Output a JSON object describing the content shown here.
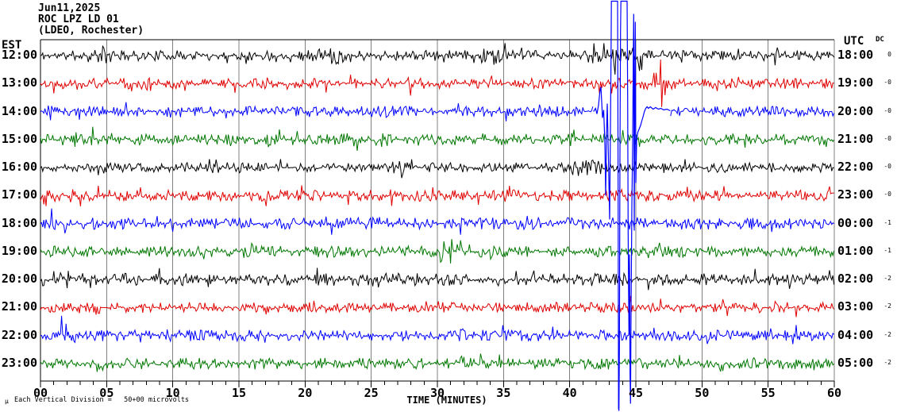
{
  "header": {
    "date": "Jun11,2025",
    "station": "ROC LPZ LD 01",
    "location": "(LDEO, Rochester)"
  },
  "labels": {
    "left_timezone": "EST",
    "right_timezone": "UTC",
    "dc_column": "DC"
  },
  "footer": {
    "mu": "μ",
    "scale_note": "Each Vertical Division =   50+00 microvolts",
    "xaxis_title": "TIME (MINUTES)"
  },
  "chart_data": {
    "type": "line",
    "kind": "helicorder seismogram, one 60-minute trace per hour",
    "title": "ROC LPZ LD 01 (LDEO, Rochester) Jun11,2025",
    "xlabel": "TIME (MINUTES)",
    "x_range_minutes": [
      0,
      60
    ],
    "x_major_tick_minutes": 5,
    "x_minor_tick_minutes": 1,
    "x_tick_labels": [
      "00",
      "05",
      "10",
      "15",
      "20",
      "25",
      "30",
      "35",
      "40",
      "45",
      "50",
      "55",
      "60"
    ],
    "grid": "vertical gray lines every 5 minutes",
    "vertical_division": "50+00 microvolts",
    "colors": {
      "grid": "#808080",
      "border": "#000000",
      "trace_cycle": [
        "#000000",
        "#e00000",
        "#0000ff",
        "#007700"
      ]
    },
    "rows": [
      {
        "est": "12:00",
        "utc": "18:00",
        "dc": "0",
        "color": "#000000",
        "amp": 3.0,
        "seed": 11,
        "bursts": [
          [
            3,
            6.5,
            6
          ],
          [
            19,
            25,
            5
          ],
          [
            31.5,
            36,
            6
          ],
          [
            40,
            47,
            6
          ]
        ]
      },
      {
        "est": "13:00",
        "utc": "19:00",
        "dc": "-0",
        "color": "#e00000",
        "amp": 3.0,
        "seed": 22,
        "bursts": [
          [
            5,
            9,
            5
          ],
          [
            26,
            30,
            4
          ],
          [
            45.4,
            48.3,
            9
          ],
          [
            46.72,
            47.12,
            17
          ]
        ]
      },
      {
        "est": "14:00",
        "utc": "20:00",
        "dc": "-0",
        "color": "#0000ff",
        "amp": 3.0,
        "seed": 33,
        "bursts": [
          [
            0,
            1.5,
            7
          ],
          [
            8,
            11,
            5
          ],
          [
            24,
            28,
            4
          ]
        ]
      },
      {
        "est": "15:00",
        "utc": "21:00",
        "dc": "-0",
        "color": "#007700",
        "amp": 3.2,
        "seed": 44,
        "bursts": [
          [
            0,
            7,
            5
          ],
          [
            21,
            26,
            4
          ],
          [
            38,
            42,
            4
          ]
        ]
      },
      {
        "est": "16:00",
        "utc": "22:00",
        "dc": "-0",
        "color": "#000000",
        "amp": 2.8,
        "seed": 55,
        "bursts": [
          [
            12,
            16,
            4
          ],
          [
            25,
            29,
            4
          ],
          [
            40,
            44,
            5
          ]
        ]
      },
      {
        "est": "17:00",
        "utc": "23:00",
        "dc": "-0",
        "color": "#e00000",
        "amp": 3.2,
        "seed": 66,
        "bursts": [
          [
            0,
            4,
            5
          ],
          [
            12,
            16,
            4
          ],
          [
            33,
            37,
            4
          ]
        ]
      },
      {
        "est": "18:00",
        "utc": "00:00",
        "dc": "-1",
        "color": "#0000ff",
        "amp": 3.4,
        "seed": 77,
        "bursts": [
          [
            0,
            3,
            6
          ],
          [
            8,
            11,
            4
          ],
          [
            24,
            27,
            4
          ]
        ]
      },
      {
        "est": "19:00",
        "utc": "01:00",
        "dc": "-1",
        "color": "#007700",
        "amp": 3.2,
        "seed": 88,
        "bursts": [
          [
            14,
            18,
            4
          ],
          [
            29.5,
            32.2,
            8
          ],
          [
            44,
            48,
            4
          ]
        ]
      },
      {
        "est": "20:00",
        "utc": "02:00",
        "dc": "-2",
        "color": "#000000",
        "amp": 3.6,
        "seed": 99,
        "bursts": [
          [
            0,
            3,
            6
          ],
          [
            20,
            24,
            4
          ],
          [
            33,
            37,
            4
          ]
        ]
      },
      {
        "est": "21:00",
        "utc": "03:00",
        "dc": "-2",
        "color": "#e00000",
        "amp": 3.0,
        "seed": 101,
        "bursts": [
          [
            2,
            5.5,
            6
          ],
          [
            27,
            31,
            4
          ],
          [
            42,
            46,
            4
          ]
        ]
      },
      {
        "est": "22:00",
        "utc": "04:00",
        "dc": "-2",
        "color": "#0000ff",
        "amp": 3.2,
        "seed": 112,
        "bursts": [
          [
            0,
            3.5,
            7
          ],
          [
            8,
            12,
            4
          ],
          [
            30,
            34,
            4
          ]
        ]
      },
      {
        "est": "23:00",
        "utc": "05:00",
        "dc": "-2",
        "color": "#007700",
        "amp": 3.2,
        "seed": 123,
        "bursts": [
          [
            3,
            7,
            4
          ],
          [
            12,
            16,
            4
          ],
          [
            30,
            34,
            4
          ],
          [
            52,
            56,
            4
          ]
        ]
      }
    ],
    "event_trace": {
      "row_index": 2,
      "description": "Large clipped seismic event on the 14:00 EST / 20:00 UTC trace, onset ~minute 42.3; amplitude exceeds the full plot height (clips at image top and extends below the bottom axis); coda settles by ~minute 47.6. A secondary burst appears on the 13:00 EST / 19:00 UTC trace at minutes ~45.4-48.",
      "noise_gap_minutes": [
        41.8,
        47.6
      ],
      "points_min_offsetpx": [
        [
          41.8,
          0
        ],
        [
          41.95,
          4
        ],
        [
          42.06,
          -3
        ],
        [
          42.18,
          8
        ],
        [
          42.28,
          25
        ],
        [
          42.36,
          31
        ],
        [
          42.42,
          12
        ],
        [
          42.48,
          -8
        ],
        [
          42.57,
          2
        ],
        [
          42.66,
          -40
        ],
        [
          42.72,
          -106
        ],
        [
          42.78,
          -30
        ],
        [
          42.84,
          10
        ],
        [
          42.93,
          -60
        ],
        [
          43.02,
          -136
        ],
        [
          43.08,
          -20
        ],
        [
          43.12,
          60
        ],
        [
          43.15,
          139
        ],
        [
          43.62,
          139
        ],
        [
          43.66,
          -100
        ],
        [
          43.69,
          -374
        ],
        [
          43.72,
          -377
        ],
        [
          43.76,
          -300
        ],
        [
          43.8,
          -50
        ],
        [
          43.84,
          100
        ],
        [
          43.87,
          139
        ],
        [
          44.34,
          139
        ],
        [
          44.38,
          20
        ],
        [
          44.42,
          -150
        ],
        [
          44.48,
          -281
        ],
        [
          44.52,
          -180
        ],
        [
          44.56,
          -330
        ],
        [
          44.6,
          -368
        ],
        [
          44.64,
          -250
        ],
        [
          44.7,
          -120
        ],
        [
          44.76,
          -40
        ],
        [
          44.8,
          60
        ],
        [
          44.84,
          123
        ],
        [
          44.88,
          -150
        ],
        [
          44.92,
          40
        ],
        [
          44.96,
          113
        ],
        [
          45.0,
          -90
        ],
        [
          45.06,
          -35
        ],
        [
          45.15,
          -26
        ],
        [
          45.25,
          -22
        ],
        [
          45.35,
          -18
        ],
        [
          45.45,
          -12
        ],
        [
          45.55,
          -6
        ],
        [
          45.65,
          0
        ],
        [
          45.75,
          4
        ],
        [
          45.85,
          6
        ],
        [
          45.95,
          4
        ],
        [
          46.1,
          6
        ],
        [
          46.3,
          3
        ],
        [
          46.5,
          5
        ],
        [
          46.7,
          3
        ],
        [
          46.9,
          4
        ],
        [
          47.1,
          2
        ],
        [
          47.35,
          3
        ],
        [
          47.6,
          1
        ]
      ]
    }
  }
}
